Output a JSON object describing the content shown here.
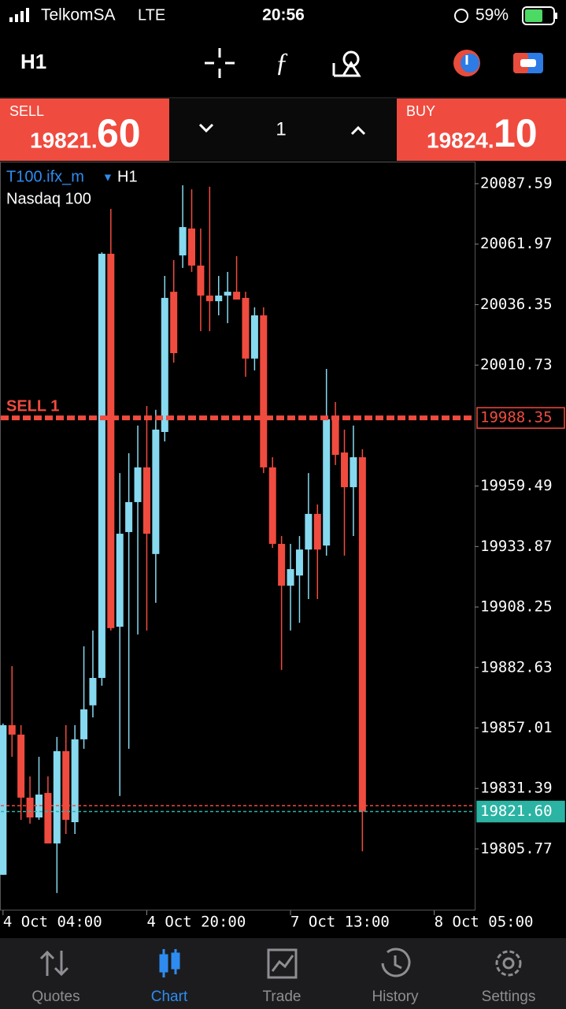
{
  "status_bar": {
    "carrier": "TelkomSA",
    "network": "LTE",
    "time": "20:56",
    "battery": "59%"
  },
  "toolbar": {
    "timeframe": "H1"
  },
  "trade_panel": {
    "sell_label": "SELL",
    "sell_price_main": "19821.",
    "sell_price_pips": "60",
    "volume": "1",
    "buy_label": "BUY",
    "buy_price_main": "19824.",
    "buy_price_pips": "10"
  },
  "chart_data": {
    "type": "candlestick",
    "symbol": "T100.ifx_m",
    "timeframe": "H1",
    "description": "Nasdaq 100",
    "up_color": "#86d9ef",
    "down_color": "#f04b3f",
    "open": [
      19794.8,
      19858.2,
      19854.2,
      19827.5,
      19819.1,
      19829.5,
      19808.1,
      19847.2,
      19817.1,
      19852.2,
      19866.6,
      19878.2,
      20057.9,
      19899.9,
      19940.0,
      19952.7,
      19967.4,
      19930.7,
      19982.4,
      20041.8,
      20057.2,
      20068.6,
      20052.9,
      20040.2,
      20037.8,
      20040.2,
      20041.8,
      20039.2,
      20013.5,
      20031.8,
      19967.4,
      19935.0,
      19917.3,
      19921.6,
      19932.6,
      19947.7,
      19934.3,
      19987.8,
      19973.7,
      19959.0,
      19971.7
    ],
    "high": [
      19858.9,
      19883.2,
      19858.2,
      19836.5,
      19844.8,
      19836.5,
      19853.2,
      19858.2,
      19858.2,
      19891.6,
      19898.3,
      20058.5,
      20076.9,
      19965.0,
      19973.4,
      19985.1,
      19993.4,
      19991.8,
      20048.5,
      20055.2,
      20086.9,
      20085.2,
      20068.6,
      20086.3,
      20048.5,
      20050.2,
      20056.9,
      20041.8,
      20035.2,
      20035.2,
      19971.7,
      19938.3,
      19935.0,
      19938.3,
      19965.0,
      19951.7,
      20009.1,
      19995.1,
      19983.4,
      19985.1,
      19975.1
    ],
    "low": [
      19794.8,
      19844.8,
      19818.1,
      19816.5,
      19818.1,
      19808.1,
      19787.1,
      19812.1,
      19812.1,
      19848.2,
      19861.5,
      19874.9,
      19898.3,
      19828.2,
      19848.2,
      19896.6,
      19898.3,
      19910.0,
      19978.4,
      20011.8,
      20051.9,
      20050.2,
      20025.1,
      20025.1,
      20031.8,
      20028.5,
      20038.5,
      20005.8,
      20008.5,
      19965.0,
      19933.3,
      19881.6,
      19898.3,
      19901.6,
      19911.6,
      19911.6,
      19930.0,
      19968.4,
      19930.0,
      19938.3,
      19804.8
    ],
    "close": [
      19858.2,
      19854.2,
      19827.5,
      19819.1,
      19828.8,
      19808.1,
      19847.2,
      19818.1,
      19852.2,
      19864.9,
      19878.2,
      20057.9,
      19899.3,
      19939.3,
      19952.7,
      19967.4,
      19939.3,
      19983.4,
      20039.2,
      20015.8,
      20069.2,
      20052.9,
      20040.2,
      20037.8,
      20040.2,
      20041.8,
      20038.5,
      20013.5,
      20031.8,
      19967.4,
      19935.0,
      19917.3,
      19924.3,
      19932.6,
      19947.7,
      19932.6,
      19987.8,
      19972.7,
      19959.0,
      19971.7,
      19821.6
    ],
    "xlim": [
      -0.25,
      52.5
    ],
    "xticks": [
      {
        "value": 0,
        "label": "4 Oct 04:00"
      },
      {
        "value": 16,
        "label": "4 Oct 20:00"
      },
      {
        "value": 32,
        "label": "7 Oct 13:00"
      },
      {
        "value": 48,
        "label": "8 Oct 05:00"
      }
    ],
    "ylim": [
      19779.7,
      20096.94
    ],
    "yticks": [
      20087.59,
      20061.97,
      20036.35,
      20010.73,
      19959.49,
      19933.87,
      19908.25,
      19882.63,
      19857.01,
      19831.39,
      19805.77
    ],
    "grid": false,
    "price_lines": [
      {
        "name": "SELL 1",
        "value": 19988.35,
        "label": "19988.35",
        "color": "#f04b3f"
      },
      {
        "value": 19824.1,
        "color": "#f04b3f"
      },
      {
        "value": 19821.6,
        "label": "19821.60",
        "color": "#2bb3a3"
      }
    ]
  },
  "tab_bar": {
    "tabs": [
      "Quotes",
      "Chart",
      "Trade",
      "History",
      "Settings"
    ],
    "active": 1
  }
}
